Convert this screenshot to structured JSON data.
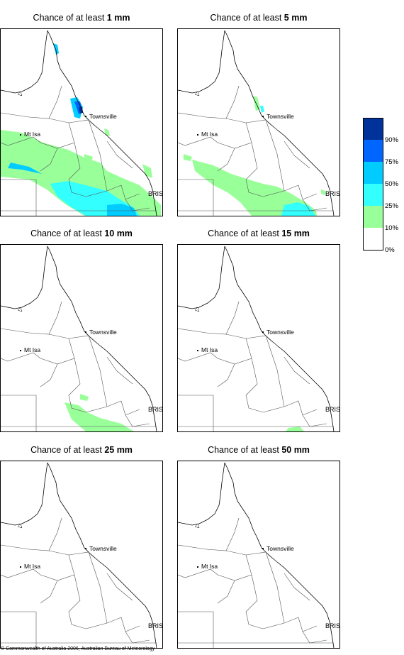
{
  "title_prefix": "Chance of at least",
  "panels": [
    {
      "amount": "1 mm"
    },
    {
      "amount": "5 mm"
    },
    {
      "amount": "10 mm"
    },
    {
      "amount": "15 mm"
    },
    {
      "amount": "25 mm"
    },
    {
      "amount": "50 mm"
    }
  ],
  "places": {
    "townsville": "Townsville",
    "mount_isa": "Mt Isa",
    "brisbane": "BRIS"
  },
  "legend": {
    "labels": [
      "90%",
      "75%",
      "50%",
      "25%",
      "10%",
      "0%"
    ],
    "colors": [
      "#003399",
      "#0066ff",
      "#00ccff",
      "#33ffff",
      "#99ff99",
      "#ffffff"
    ]
  },
  "footer": "© Commonwealth of Australia 2006, Australian Bureau of Meteorology"
}
